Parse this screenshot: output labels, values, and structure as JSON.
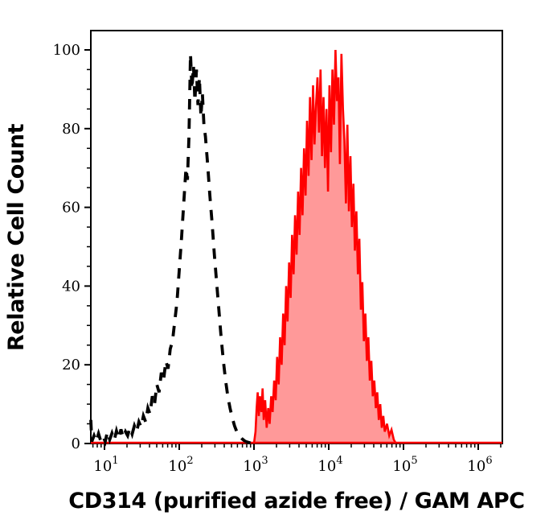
{
  "figure": {
    "background": "#ffffff",
    "frame_color": "#000000"
  },
  "chart_data": {
    "type": "area",
    "subtype": "flow-cytometry-overlay-histogram",
    "title": "",
    "xlabel": "CD314 (purified azide free) / GAM APC",
    "ylabel": "Relative Cell Count",
    "x_scale": "log10",
    "x_range_log10": [
      0.817,
      6.323
    ],
    "ylim": [
      0,
      105
    ],
    "grid": false,
    "legend": null,
    "x_tick_base": "10",
    "x_major_tick_exponents": [
      1,
      2,
      3,
      4,
      5,
      6
    ],
    "x_minor_tick_mantissas": [
      2,
      3,
      4,
      5,
      6,
      7,
      8,
      9
    ],
    "y_major_ticks": [
      0,
      20,
      40,
      60,
      80,
      100
    ],
    "y_minor_tick_step": 5,
    "frame_color": "#000000",
    "baseline": {
      "color": "#ff0000",
      "stroke_width": 2.6
    },
    "series": [
      {
        "name": "unstained_control_dashed",
        "style": "dashed-outline",
        "color": "#000000",
        "fill": "none",
        "dash": [
          13,
          11
        ],
        "stroke_width": 3.8,
        "points_log10x_y": [
          [
            0.817,
            6
          ],
          [
            0.83,
            0.5
          ],
          [
            0.86,
            2
          ],
          [
            0.89,
            0.5
          ],
          [
            0.92,
            2.5
          ],
          [
            0.95,
            0.6
          ],
          [
            0.98,
            1.8
          ],
          [
            1.01,
            0.5
          ],
          [
            1.04,
            3
          ],
          [
            1.07,
            1
          ],
          [
            1.1,
            2.6
          ],
          [
            1.13,
            0.8
          ],
          [
            1.16,
            3.2
          ],
          [
            1.19,
            1.2
          ],
          [
            1.22,
            3.6
          ],
          [
            1.25,
            1.5
          ],
          [
            1.28,
            3
          ],
          [
            1.31,
            2
          ],
          [
            1.34,
            4
          ],
          [
            1.37,
            2.4
          ],
          [
            1.4,
            4.5
          ],
          [
            1.43,
            3
          ],
          [
            1.46,
            5.5
          ],
          [
            1.49,
            4.2
          ],
          [
            1.52,
            7
          ],
          [
            1.55,
            5.5
          ],
          [
            1.58,
            9
          ],
          [
            1.61,
            7.5
          ],
          [
            1.64,
            12
          ],
          [
            1.67,
            10
          ],
          [
            1.7,
            15
          ],
          [
            1.73,
            13
          ],
          [
            1.76,
            18
          ],
          [
            1.79,
            16
          ],
          [
            1.82,
            21
          ],
          [
            1.85,
            19
          ],
          [
            1.88,
            24
          ],
          [
            1.91,
            26
          ],
          [
            1.94,
            31
          ],
          [
            1.97,
            36
          ],
          [
            2.0,
            44
          ],
          [
            2.03,
            52
          ],
          [
            2.06,
            61
          ],
          [
            2.09,
            70
          ],
          [
            2.11,
            67
          ],
          [
            2.13,
            78
          ],
          [
            2.15,
            99
          ],
          [
            2.17,
            90
          ],
          [
            2.19,
            96
          ],
          [
            2.21,
            87
          ],
          [
            2.23,
            95
          ],
          [
            2.25,
            86
          ],
          [
            2.27,
            93
          ],
          [
            2.29,
            83
          ],
          [
            2.31,
            89
          ],
          [
            2.33,
            81
          ],
          [
            2.35,
            78
          ],
          [
            2.38,
            71
          ],
          [
            2.41,
            63
          ],
          [
            2.44,
            56
          ],
          [
            2.47,
            48
          ],
          [
            2.5,
            41
          ],
          [
            2.53,
            34
          ],
          [
            2.56,
            27
          ],
          [
            2.59,
            21
          ],
          [
            2.62,
            16
          ],
          [
            2.65,
            12
          ],
          [
            2.68,
            9
          ],
          [
            2.71,
            6.5
          ],
          [
            2.74,
            4.5
          ],
          [
            2.77,
            3
          ],
          [
            2.8,
            2
          ],
          [
            2.84,
            1.2
          ],
          [
            2.88,
            0.6
          ],
          [
            2.92,
            0.3
          ],
          [
            2.96,
            0.1
          ],
          [
            3.0,
            0
          ]
        ]
      },
      {
        "name": "cd314_gam_apc_stained_filled",
        "style": "filled-outline",
        "color": "#ff0000",
        "fill": "#ff0000",
        "fill_opacity": 0.4,
        "stroke_width": 2.6,
        "points_log10x_y": [
          [
            3.0,
            0
          ],
          [
            3.02,
            3
          ],
          [
            3.035,
            9
          ],
          [
            3.05,
            13
          ],
          [
            3.065,
            7
          ],
          [
            3.08,
            12
          ],
          [
            3.1,
            8
          ],
          [
            3.115,
            14
          ],
          [
            3.13,
            6
          ],
          [
            3.15,
            11
          ],
          [
            3.17,
            4
          ],
          [
            3.19,
            9
          ],
          [
            3.21,
            5
          ],
          [
            3.23,
            12
          ],
          [
            3.25,
            8
          ],
          [
            3.27,
            16
          ],
          [
            3.29,
            11
          ],
          [
            3.31,
            22
          ],
          [
            3.33,
            15
          ],
          [
            3.35,
            27
          ],
          [
            3.37,
            20
          ],
          [
            3.39,
            33
          ],
          [
            3.41,
            25
          ],
          [
            3.43,
            40
          ],
          [
            3.45,
            31
          ],
          [
            3.47,
            46
          ],
          [
            3.49,
            37
          ],
          [
            3.51,
            53
          ],
          [
            3.53,
            43
          ],
          [
            3.55,
            58
          ],
          [
            3.57,
            48
          ],
          [
            3.59,
            64
          ],
          [
            3.61,
            53
          ],
          [
            3.63,
            70
          ],
          [
            3.65,
            58
          ],
          [
            3.67,
            75
          ],
          [
            3.69,
            63
          ],
          [
            3.71,
            82
          ],
          [
            3.73,
            68
          ],
          [
            3.75,
            88
          ],
          [
            3.77,
            72
          ],
          [
            3.79,
            91
          ],
          [
            3.81,
            76
          ],
          [
            3.83,
            86
          ],
          [
            3.85,
            93
          ],
          [
            3.87,
            79
          ],
          [
            3.89,
            95
          ],
          [
            3.91,
            73
          ],
          [
            3.93,
            88
          ],
          [
            3.95,
            70
          ],
          [
            3.97,
            85
          ],
          [
            3.99,
            64
          ],
          [
            4.01,
            91
          ],
          [
            4.03,
            74
          ],
          [
            4.05,
            95
          ],
          [
            4.07,
            81
          ],
          [
            4.09,
            100
          ],
          [
            4.11,
            87
          ],
          [
            4.13,
            93
          ],
          [
            4.15,
            71
          ],
          [
            4.17,
            99
          ],
          [
            4.19,
            85
          ],
          [
            4.21,
            77
          ],
          [
            4.23,
            61
          ],
          [
            4.25,
            81
          ],
          [
            4.27,
            59
          ],
          [
            4.29,
            73
          ],
          [
            4.31,
            55
          ],
          [
            4.33,
            66
          ],
          [
            4.35,
            49
          ],
          [
            4.37,
            59
          ],
          [
            4.39,
            43
          ],
          [
            4.41,
            52
          ],
          [
            4.43,
            34
          ],
          [
            4.45,
            41
          ],
          [
            4.47,
            26
          ],
          [
            4.49,
            33
          ],
          [
            4.51,
            21
          ],
          [
            4.53,
            27
          ],
          [
            4.55,
            16
          ],
          [
            4.57,
            21
          ],
          [
            4.59,
            12
          ],
          [
            4.61,
            16
          ],
          [
            4.63,
            9
          ],
          [
            4.65,
            13
          ],
          [
            4.67,
            6
          ],
          [
            4.69,
            10
          ],
          [
            4.71,
            4
          ],
          [
            4.73,
            7
          ],
          [
            4.75,
            3
          ],
          [
            4.78,
            5
          ],
          [
            4.81,
            2
          ],
          [
            4.84,
            3.5
          ],
          [
            4.87,
            1
          ],
          [
            4.9,
            0
          ]
        ]
      }
    ]
  }
}
